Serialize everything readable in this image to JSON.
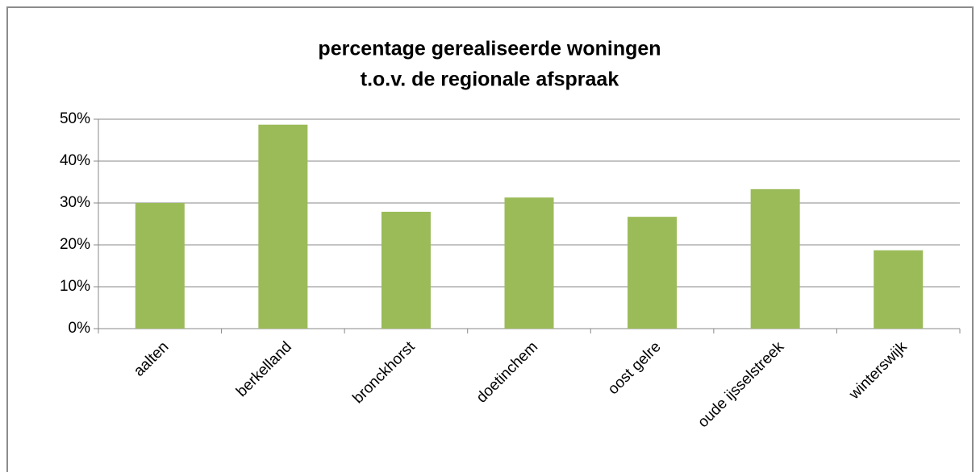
{
  "chart_data": {
    "type": "bar",
    "title": [
      "percentage gerealiseerde woningen",
      "t.o.v. de regionale afspraak"
    ],
    "categories": [
      "aalten",
      "berkelland",
      "bronckhorst",
      "doetinchem",
      "oost gelre",
      "oude ijsselstreek",
      "winterswijk"
    ],
    "values": [
      30.0,
      48.7,
      27.9,
      31.3,
      26.7,
      33.3,
      18.7
    ],
    "color": "#9bbb59",
    "ylim": [
      0,
      50
    ],
    "yticks": [
      {
        "value": 0,
        "label": "0%"
      },
      {
        "value": 10,
        "label": "10%"
      },
      {
        "value": 20,
        "label": "20%"
      },
      {
        "value": 30,
        "label": "30%"
      },
      {
        "value": 40,
        "label": "40%"
      },
      {
        "value": 50,
        "label": "50%"
      }
    ],
    "grid": true
  }
}
